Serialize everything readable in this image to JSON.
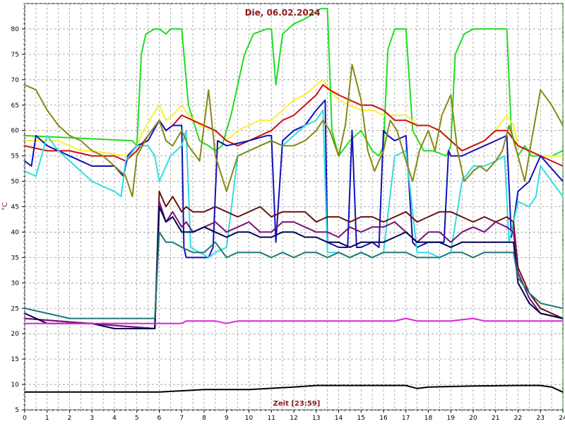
{
  "chart_data": {
    "type": "line",
    "title": "Die, 06.02.2024",
    "xlabel": "Zeit [23:59]",
    "ylabel": "°C",
    "xlim": [
      0,
      24
    ],
    "ylim": [
      5,
      85
    ],
    "grid": true,
    "x_ticks": [
      "0",
      "1",
      "2",
      "3",
      "4",
      "5",
      "6",
      "7",
      "8",
      "9",
      "10",
      "11",
      "12",
      "13",
      "14",
      "15",
      "16",
      "17",
      "18",
      "19",
      "20",
      "21",
      "22",
      "23",
      "24"
    ],
    "y_ticks": [
      "5",
      "10",
      "15",
      "20",
      "25",
      "30",
      "35",
      "40",
      "45",
      "50",
      "55",
      "60",
      "65",
      "70",
      "75",
      "80"
    ],
    "series": [
      {
        "color": "#22dd22",
        "x": [
          0,
          4.8,
          5,
          5.2,
          5.4,
          5.8,
          6,
          6.3,
          6.5,
          7,
          7.3,
          7.8,
          8.2,
          8.5,
          8.8,
          9.2,
          9.8,
          10.2,
          10.8,
          11,
          11.2,
          11.5,
          12,
          12.5,
          13.2,
          13.5,
          13.7,
          14,
          14.5,
          15,
          15.5,
          15.8,
          16,
          16.2,
          16.5,
          17,
          17.3,
          17.8,
          18.2,
          18.8,
          19,
          19.2,
          19.6,
          20,
          20.5,
          21,
          21.5,
          21.7,
          22,
          22.3,
          22.6,
          23,
          23.5,
          24
        ],
        "y": [
          59,
          58,
          57,
          75,
          79,
          80,
          80,
          79,
          80,
          80,
          65,
          58,
          57,
          56,
          57,
          63,
          75,
          79,
          80,
          80,
          69,
          79,
          81,
          82,
          84,
          84,
          60,
          55,
          58,
          60,
          56,
          55,
          57,
          76,
          80,
          80,
          60,
          56,
          56,
          55,
          57,
          75,
          79,
          80,
          80,
          80,
          80,
          60,
          55,
          57,
          55,
          55,
          55,
          56
        ]
      },
      {
        "color": "#ffee33",
        "x": [
          0,
          1,
          1.5,
          2,
          2.5,
          3,
          4.5,
          4.8,
          5,
          5.3,
          5.7,
          6,
          6.3,
          6.6,
          7,
          7.3,
          7.8,
          8.5,
          9,
          9.5,
          10,
          10.5,
          11,
          11.5,
          12,
          12.5,
          13,
          13.3,
          13.6,
          14,
          14.5,
          15,
          15.5,
          16,
          16.5,
          17,
          17.5,
          18,
          18.5,
          19,
          19.5,
          20,
          20.5,
          21,
          21.5,
          21.8,
          22,
          22.5,
          23,
          24
        ],
        "y": [
          58,
          58,
          58,
          57,
          56,
          56,
          55,
          56,
          57,
          60,
          63,
          65,
          62,
          63,
          65,
          63,
          61,
          60,
          58,
          60,
          61,
          62,
          62,
          64,
          66,
          67,
          69,
          70,
          68,
          66,
          65,
          64,
          64,
          63,
          63,
          63,
          61,
          61,
          60,
          58,
          56,
          57,
          58,
          60,
          63,
          61,
          57,
          56,
          55,
          55
        ]
      },
      {
        "color": "#cc1111",
        "x": [
          0,
          1,
          2,
          3,
          4,
          4.5,
          5,
          5.5,
          6,
          6.3,
          6.6,
          7,
          7.5,
          8,
          8.5,
          9,
          9.5,
          10,
          10.5,
          11,
          11.5,
          12,
          12.5,
          13,
          13.3,
          13.6,
          14,
          14.5,
          15,
          15.5,
          16,
          16.5,
          17,
          17.5,
          18,
          18.5,
          19,
          19.5,
          20,
          20.5,
          21,
          21.5,
          22,
          22.5,
          23,
          24
        ],
        "y": [
          57,
          56,
          56,
          55,
          55,
          54,
          56,
          59,
          62,
          60,
          61,
          63,
          62,
          61,
          60,
          58,
          57,
          58,
          59,
          60,
          62,
          63,
          65,
          67,
          69,
          68,
          67,
          66,
          65,
          65,
          64,
          62,
          62,
          61,
          61,
          60,
          58,
          56,
          57,
          58,
          60,
          60,
          57,
          56,
          55,
          53
        ]
      },
      {
        "color": "#1111bb",
        "x": [
          0,
          0.3,
          0.5,
          1,
          1.5,
          2,
          2.5,
          3,
          4,
          4.4,
          4.6,
          5,
          5.5,
          6,
          6.3,
          6.6,
          7,
          7.1,
          7.2,
          8.2,
          8.4,
          8.6,
          9,
          10,
          10.8,
          11,
          11.2,
          11.5,
          12,
          12.5,
          13,
          13.4,
          13.5,
          14,
          14.4,
          14.6,
          14.8,
          15,
          15.5,
          15.8,
          16,
          16.2,
          16.5,
          17,
          17.3,
          17.5,
          18,
          18.7,
          18.9,
          19,
          19.5,
          20,
          20.5,
          21,
          21.5,
          21.7,
          22,
          22.5,
          23,
          24
        ],
        "y": [
          54,
          53,
          59,
          57,
          56,
          55,
          54,
          53,
          53,
          51,
          55,
          57,
          58,
          62,
          60,
          61,
          61,
          37,
          35,
          35,
          37,
          58,
          57,
          58,
          59,
          59,
          38,
          58,
          60,
          61,
          64,
          66,
          38,
          37,
          37,
          60,
          37,
          37,
          38,
          37,
          60,
          59,
          58,
          59,
          38,
          37,
          38,
          38,
          56,
          55,
          55,
          56,
          57,
          58,
          59,
          39,
          48,
          50,
          55,
          50
        ]
      },
      {
        "color": "#33dddd",
        "x": [
          0,
          0.5,
          1,
          1.5,
          2,
          2.5,
          3,
          3.5,
          4,
          4.3,
          4.5,
          5,
          5.5,
          5.8,
          6,
          6.2,
          6.5,
          7,
          7.2,
          7.4,
          7.8,
          8.2,
          8.5,
          9,
          9.5,
          10,
          10.5,
          11,
          11.5,
          12,
          12.5,
          13,
          13.3,
          13.5,
          14,
          14.5,
          15,
          15.5,
          16,
          16.5,
          17,
          17.5,
          18,
          18.5,
          19,
          19.5,
          20,
          20.5,
          21,
          21.4,
          21.6,
          22,
          22.5,
          22.8,
          23,
          23.5,
          24
        ],
        "y": [
          52,
          51,
          59,
          56,
          54,
          52,
          50,
          49,
          48,
          47,
          54,
          57,
          57,
          55,
          50,
          52,
          55,
          57,
          60,
          37,
          36,
          35,
          36,
          37,
          55,
          56,
          57,
          58,
          57,
          59,
          61,
          62,
          64,
          36,
          36,
          35,
          36,
          35,
          36,
          55,
          56,
          36,
          36,
          35,
          36,
          50,
          53,
          53,
          54,
          55,
          38,
          46,
          45,
          47,
          53,
          50,
          47
        ]
      },
      {
        "color": "#888811",
        "x": [
          0,
          0.5,
          1,
          1.5,
          2,
          2.5,
          3,
          3.5,
          4,
          4.5,
          4.8,
          5,
          5.5,
          6,
          6.3,
          6.6,
          7,
          7.3,
          7.8,
          8.2,
          8.5,
          9,
          9.5,
          10,
          10.5,
          11,
          11.5,
          12,
          12.5,
          13,
          13.3,
          13.6,
          14,
          14.3,
          14.6,
          15,
          15.3,
          15.6,
          16,
          16.3,
          16.6,
          17,
          17.3,
          17.6,
          18,
          18.3,
          18.6,
          19,
          19.3,
          19.6,
          20,
          20.3,
          20.6,
          21,
          21.3,
          21.6,
          22,
          22.3,
          22.6,
          23,
          23.5,
          24
        ],
        "y": [
          69,
          68,
          64,
          61,
          59,
          58,
          56,
          55,
          53,
          51,
          47,
          55,
          59,
          62,
          58,
          57,
          60,
          57,
          54,
          68,
          55,
          48,
          55,
          56,
          57,
          58,
          57,
          57,
          58,
          60,
          62,
          60,
          55,
          61,
          73,
          66,
          56,
          52,
          56,
          62,
          60,
          54,
          50,
          56,
          60,
          56,
          63,
          67,
          56,
          50,
          52,
          53,
          52,
          54,
          56,
          61,
          55,
          50,
          58,
          68,
          65,
          61
        ]
      },
      {
        "color": "#661111",
        "x": [
          0,
          5.8,
          6,
          6.3,
          6.6,
          7,
          7.2,
          7.5,
          8,
          8.5,
          9,
          9.5,
          10,
          10.5,
          11,
          11.5,
          12,
          12.5,
          13,
          13.5,
          14,
          14.5,
          15,
          15.5,
          16,
          16.5,
          17,
          17.5,
          18,
          18.5,
          19,
          19.5,
          20,
          20.5,
          21,
          21.5,
          21.8,
          22,
          22.5,
          23,
          24
        ],
        "y": [
          23,
          21,
          48,
          45,
          47,
          44,
          45,
          44,
          44,
          45,
          44,
          43,
          44,
          45,
          43,
          44,
          44,
          44,
          42,
          43,
          43,
          42,
          43,
          43,
          42,
          43,
          44,
          42,
          43,
          44,
          44,
          43,
          42,
          43,
          42,
          43,
          42,
          33,
          28,
          25,
          23
        ]
      },
      {
        "color": "#771177",
        "x": [
          0,
          5.8,
          6,
          6.3,
          6.6,
          7,
          7.2,
          7.5,
          8,
          8.5,
          9,
          9.5,
          10,
          10.5,
          11,
          11.5,
          12,
          12.5,
          13,
          13.5,
          14,
          14.5,
          15,
          15.5,
          16,
          16.5,
          17,
          17.5,
          18,
          18.5,
          19,
          19.5,
          20,
          20.5,
          21,
          21.5,
          21.8,
          22,
          22.5,
          23,
          24
        ],
        "y": [
          23,
          21,
          46,
          42,
          44,
          41,
          42,
          40,
          41,
          42,
          40,
          41,
          42,
          40,
          40,
          42,
          42,
          41,
          40,
          40,
          39,
          41,
          40,
          41,
          41,
          42,
          40,
          38,
          40,
          40,
          38,
          40,
          41,
          40,
          42,
          41,
          40,
          32,
          27,
          24,
          23
        ]
      },
      {
        "color": "#000055",
        "x": [
          0,
          1,
          2,
          3,
          4,
          5,
          5.8,
          6,
          6.3,
          6.6,
          7,
          7.5,
          8,
          8.5,
          9,
          9.5,
          10,
          10.5,
          11,
          11.5,
          12,
          12.5,
          13,
          13.5,
          14,
          14.5,
          15,
          15.5,
          16,
          16.5,
          17,
          17.5,
          18,
          18.5,
          19,
          19.5,
          20,
          20.5,
          21,
          21.5,
          21.8,
          22,
          22.5,
          23,
          24
        ],
        "y": [
          24,
          22,
          22,
          22,
          21,
          21,
          21,
          45,
          42,
          43,
          40,
          40,
          41,
          40,
          39,
          40,
          40,
          39,
          39,
          40,
          40,
          39,
          39,
          38,
          38,
          37,
          38,
          38,
          38,
          39,
          40,
          38,
          38,
          38,
          37,
          38,
          38,
          38,
          38,
          38,
          38,
          30,
          26,
          24,
          23
        ]
      },
      {
        "color": "#227777",
        "x": [
          0,
          1,
          2,
          3,
          4,
          5,
          5.8,
          6,
          6.3,
          6.6,
          7,
          7.5,
          8,
          8.5,
          9,
          9.5,
          10,
          10.5,
          11,
          11.5,
          12,
          12.5,
          13,
          13.5,
          14,
          14.5,
          15,
          15.5,
          16,
          16.5,
          17,
          17.5,
          18,
          18.5,
          19,
          19.5,
          20,
          20.5,
          21,
          21.5,
          21.8,
          22,
          22.5,
          23,
          24
        ],
        "y": [
          25,
          24,
          23,
          23,
          23,
          23,
          23,
          40,
          38,
          38,
          37,
          36,
          36,
          38,
          35,
          36,
          36,
          36,
          35,
          36,
          35,
          36,
          36,
          35,
          36,
          35,
          36,
          35,
          36,
          36,
          36,
          35,
          35,
          35,
          36,
          36,
          35,
          36,
          36,
          36,
          36,
          31,
          28,
          26,
          25
        ]
      },
      {
        "color": "#dd22dd",
        "x": [
          0,
          5.8,
          6,
          7,
          7.2,
          8,
          8.5,
          9,
          9.5,
          10,
          11,
          12,
          13,
          14,
          15,
          16,
          16.5,
          17,
          17.5,
          18,
          19,
          20,
          20.5,
          21,
          22,
          23,
          24
        ],
        "y": [
          22,
          22,
          22,
          22,
          22.5,
          22.5,
          22.5,
          22,
          22.5,
          22.5,
          22.5,
          22.5,
          22.5,
          22.5,
          22.5,
          22.5,
          22.5,
          23,
          22.5,
          22.5,
          22.5,
          23,
          22.5,
          22.5,
          22.5,
          22.5,
          22.5
        ]
      },
      {
        "color": "#000000",
        "x": [
          0,
          2,
          4,
          6,
          8,
          10,
          12,
          13,
          14,
          16,
          17,
          17.5,
          18,
          20,
          22,
          23,
          23.5,
          24
        ],
        "y": [
          8.5,
          8.5,
          8.5,
          8.5,
          9,
          9,
          9.5,
          9.8,
          9.8,
          9.8,
          9.8,
          9.2,
          9.5,
          9.7,
          9.8,
          9.8,
          9.5,
          8.5
        ]
      }
    ]
  }
}
